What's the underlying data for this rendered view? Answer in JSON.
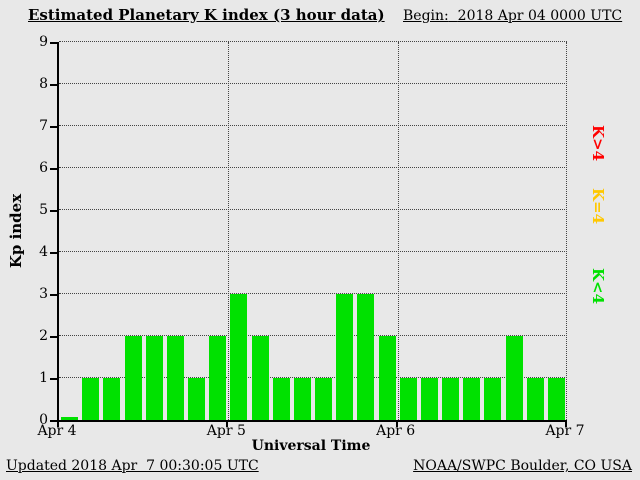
{
  "colors": {
    "background": "#e8e8e8",
    "bar_lt4": "#00e100",
    "bar_eq4": "#ffc800",
    "bar_gt4": "#ff0000",
    "grid": "#444444",
    "axis": "#000000"
  },
  "header": {
    "title": "Estimated Planetary K index (3 hour data)",
    "begin_label": "Begin:",
    "begin_value": "2018 Apr 04 0000 UTC"
  },
  "footer": {
    "updated": "Updated 2018 Apr  7 00:30:05 UTC",
    "source": "NOAA/SWPC Boulder, CO USA"
  },
  "legend": [
    {
      "name": "k-greater-than-4",
      "label": "K>4",
      "color": "#ff0000"
    },
    {
      "name": "k-equal-4",
      "label": "K=4",
      "color": "#ffc800"
    },
    {
      "name": "k-less-than-4",
      "label": "K<4",
      "color": "#00e100"
    }
  ],
  "chart_data": {
    "type": "bar",
    "title": "Estimated Planetary K index (3 hour data)",
    "xlabel": "Universal Time",
    "ylabel": "Kp index",
    "ylim": [
      0,
      9
    ],
    "yticks": [
      0,
      1,
      2,
      3,
      4,
      5,
      6,
      7,
      8,
      9
    ],
    "x_tick_labels": [
      "Apr 4",
      "Apr 5",
      "Apr 6",
      "Apr 7"
    ],
    "interval_hours": 3,
    "begin": "2018 Apr 04 0000 UTC",
    "grid": "dotted",
    "legend_position": "right",
    "color_rule": "green if Kp<4, yellow if Kp=4, red if Kp>4",
    "values": [
      0,
      1,
      1,
      2,
      2,
      2,
      1,
      2,
      3,
      2,
      1,
      1,
      1,
      3,
      3,
      2,
      1,
      1,
      1,
      1,
      1,
      2,
      1,
      1
    ]
  }
}
